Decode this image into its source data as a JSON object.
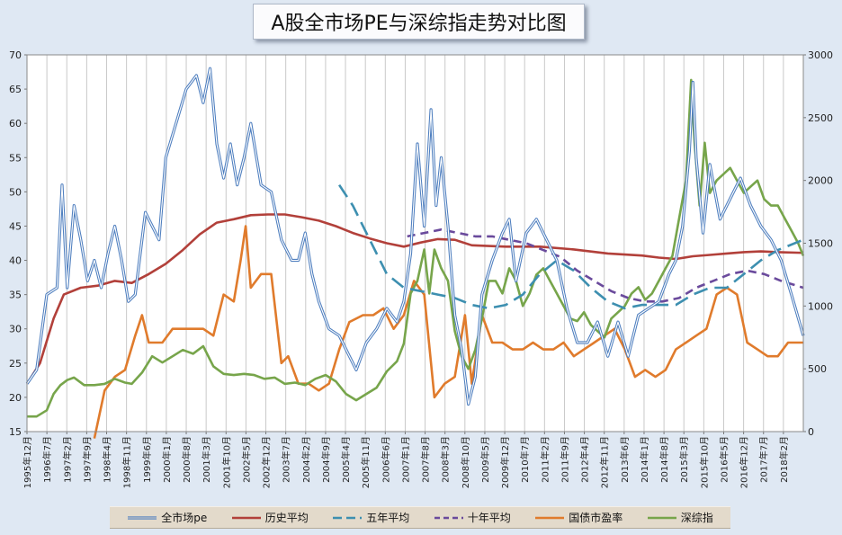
{
  "title": "A股全市场PE与深综指走势对比图",
  "chart_data": {
    "type": "line",
    "title": "A股全市场PE与深综指走势对比图",
    "y_left": {
      "min": 15,
      "max": 70,
      "step": 5,
      "ticks": [
        "15",
        "20",
        "25",
        "30",
        "35",
        "40",
        "45",
        "50",
        "55",
        "60",
        "65",
        "70"
      ]
    },
    "y_right": {
      "min": 0,
      "max": 3000,
      "step": 500,
      "ticks": [
        "0",
        "500",
        "1000",
        "1500",
        "2000",
        "2500",
        "3000"
      ]
    },
    "x_start": 1995.917,
    "x_end": 2018.75,
    "x_ticks": [
      "1995年12月",
      "1996年7月",
      "1997年2月",
      "1997年9月",
      "1998年4月",
      "1998年11月",
      "1999年6月",
      "2000年1月",
      "2000年8月",
      "2001年3月",
      "2001年10月",
      "2002年5月",
      "2002年12月",
      "2003年7月",
      "2004年2月",
      "2004年9月",
      "2005年4月",
      "2005年11月",
      "2006年6月",
      "2007年1月",
      "2007年8月",
      "2008年3月",
      "2008年10月",
      "2009年5月",
      "2009年12月",
      "2010年7月",
      "2011年2月",
      "2011年9月",
      "2012年4月",
      "2012年11月",
      "2013年6月",
      "2014年1月",
      "2014年8月",
      "2015年3月",
      "2015年10月",
      "2016年5月",
      "2016年12月",
      "2017年7月",
      "2018年2月"
    ],
    "series": [
      {
        "name": "全市场pe",
        "axis": "left",
        "color": "#4f7fbf",
        "style": "double",
        "x": [
          1995.92,
          1996.2,
          1996.5,
          1996.8,
          1996.95,
          1997.1,
          1997.3,
          1997.5,
          1997.7,
          1997.9,
          1998.1,
          1998.3,
          1998.5,
          1998.7,
          1998.9,
          1999.1,
          1999.4,
          1999.6,
          1999.8,
          2000.0,
          2000.3,
          2000.6,
          2000.9,
          2001.1,
          2001.3,
          2001.5,
          2001.7,
          2001.9,
          2002.1,
          2002.3,
          2002.5,
          2002.8,
          2003.1,
          2003.4,
          2003.7,
          2003.9,
          2004.1,
          2004.3,
          2004.5,
          2004.8,
          2005.1,
          2005.4,
          2005.6,
          2005.9,
          2006.2,
          2006.5,
          2006.8,
          2007.0,
          2007.2,
          2007.4,
          2007.6,
          2007.8,
          2007.95,
          2008.1,
          2008.3,
          2008.5,
          2008.7,
          2008.9,
          2009.1,
          2009.3,
          2009.6,
          2009.9,
          2010.1,
          2010.3,
          2010.6,
          2010.9,
          2011.2,
          2011.5,
          2011.8,
          2012.1,
          2012.4,
          2012.7,
          2013.0,
          2013.3,
          2013.6,
          2013.9,
          2014.2,
          2014.5,
          2014.8,
          2015.0,
          2015.2,
          2015.4,
          2015.5,
          2015.6,
          2015.8,
          2016.0,
          2016.3,
          2016.6,
          2016.9,
          2017.2,
          2017.5,
          2017.8,
          2018.1,
          2018.4,
          2018.75
        ],
        "y": [
          22,
          24,
          35,
          36,
          51,
          36,
          48,
          43,
          37,
          40,
          36,
          41,
          45,
          40,
          34,
          35,
          47,
          45,
          43,
          55,
          60,
          65,
          67,
          63,
          68,
          57,
          52,
          57,
          51,
          55,
          60,
          51,
          50,
          43,
          40,
          40,
          44,
          38,
          34,
          30,
          29,
          26,
          24,
          28,
          30,
          33,
          31,
          34,
          41,
          57,
          45,
          62,
          48,
          55,
          45,
          32,
          27,
          19,
          23,
          35,
          40,
          44,
          46,
          37,
          44,
          46,
          43,
          40,
          33,
          28,
          28,
          31,
          26,
          31,
          26,
          32,
          33,
          34,
          38,
          40,
          45,
          56,
          66,
          55,
          44,
          54,
          46,
          49,
          52,
          48,
          45,
          43,
          40,
          35,
          29
        ]
      },
      {
        "name": "历史平均",
        "axis": "left",
        "color": "#b2403a",
        "style": "solid",
        "x": [
          1995.92,
          1996.3,
          1996.7,
          1997.0,
          1997.5,
          1998.0,
          1998.5,
          1999.0,
          1999.5,
          2000.0,
          2000.5,
          2001.0,
          2001.5,
          2002.0,
          2002.5,
          2003.0,
          2003.5,
          2004.0,
          2004.5,
          2005.0,
          2005.5,
          2006.0,
          2006.5,
          2007.0,
          2007.5,
          2008.0,
          2008.5,
          2009.0,
          2010.0,
          2011.0,
          2012.0,
          2013.0,
          2014.0,
          2014.5,
          2015.0,
          2015.5,
          2016.0,
          2016.5,
          2017.0,
          2017.5,
          2018.0,
          2018.75
        ],
        "y": [
          22,
          25,
          31.5,
          35,
          36,
          36.3,
          37,
          36.7,
          38,
          39.5,
          41.5,
          43.8,
          45.5,
          46,
          46.6,
          46.7,
          46.7,
          46.3,
          45.8,
          45,
          44,
          43.2,
          42.5,
          42,
          42.6,
          43.1,
          43,
          42.2,
          42,
          42,
          41.6,
          41,
          40.7,
          40.4,
          40.2,
          40.6,
          40.8,
          41,
          41.2,
          41.3,
          41.2,
          41.1
        ]
      },
      {
        "name": "五年平均",
        "axis": "left",
        "color": "#3d8fb0",
        "style": "longdash",
        "x": [
          2005.1,
          2005.5,
          2006.0,
          2006.5,
          2007.0,
          2007.5,
          2008.0,
          2008.5,
          2009.0,
          2009.5,
          2010.0,
          2010.5,
          2011.0,
          2011.5,
          2012.0,
          2012.5,
          2013.0,
          2013.5,
          2014.0,
          2014.5,
          2015.0,
          2015.5,
          2016.0,
          2016.5,
          2017.0,
          2017.5,
          2018.0,
          2018.75
        ],
        "y": [
          51,
          48,
          43,
          38,
          36,
          35.5,
          35,
          34.5,
          33.5,
          33,
          33.5,
          35,
          38,
          40,
          38.5,
          36,
          34,
          33,
          33.5,
          33.5,
          33.5,
          35,
          36,
          36,
          38,
          40,
          41.5,
          43
        ]
      },
      {
        "name": "十年平均",
        "axis": "left",
        "color": "#6a4a9c",
        "style": "dash",
        "x": [
          2007.1,
          2007.6,
          2008.1,
          2008.6,
          2009.1,
          2009.6,
          2010.1,
          2010.6,
          2011.1,
          2011.6,
          2012.1,
          2012.6,
          2013.1,
          2013.6,
          2014.1,
          2014.6,
          2015.1,
          2015.6,
          2016.1,
          2016.6,
          2017.1,
          2017.6,
          2018.1,
          2018.75
        ],
        "y": [
          43.5,
          44,
          44.5,
          44,
          43.5,
          43.5,
          43,
          42.5,
          41.5,
          40.5,
          38.5,
          37,
          35.5,
          34.5,
          34,
          34,
          34.5,
          36,
          37,
          38,
          38.5,
          38,
          37,
          36
        ]
      },
      {
        "name": "国债市盈率",
        "axis": "left",
        "color": "#e07b2c",
        "style": "solid",
        "x": [
          1997.9,
          1998.2,
          1998.5,
          1998.8,
          1999.1,
          1999.3,
          1999.5,
          1999.7,
          1999.9,
          2000.2,
          2000.5,
          2000.8,
          2001.1,
          2001.4,
          2001.7,
          2002.0,
          2002.2,
          2002.35,
          2002.5,
          2002.8,
          2003.1,
          2003.4,
          2003.6,
          2003.9,
          2004.2,
          2004.5,
          2004.8,
          2005.1,
          2005.4,
          2005.8,
          2006.1,
          2006.4,
          2006.7,
          2007.0,
          2007.3,
          2007.6,
          2007.9,
          2008.2,
          2008.5,
          2008.8,
          2009.0,
          2009.3,
          2009.6,
          2009.9,
          2010.2,
          2010.5,
          2010.8,
          2011.1,
          2011.4,
          2011.7,
          2012.0,
          2012.3,
          2012.6,
          2012.9,
          2013.2,
          2013.5,
          2013.8,
          2014.1,
          2014.4,
          2014.7,
          2015.0,
          2015.3,
          2015.6,
          2015.9,
          2016.2,
          2016.5,
          2016.8,
          2017.1,
          2017.4,
          2017.7,
          2018.0,
          2018.3,
          2018.75
        ],
        "y": [
          14,
          21,
          23,
          24,
          29,
          32,
          28,
          28,
          28,
          30,
          30,
          30,
          30,
          29,
          35,
          34,
          40,
          45,
          36,
          38,
          38,
          25,
          26,
          22,
          22,
          21,
          22,
          27,
          31,
          32,
          32,
          33,
          30,
          32,
          37,
          35,
          20,
          22,
          23,
          32,
          22,
          32,
          28,
          28,
          27,
          27,
          28,
          27,
          27,
          28,
          26,
          27,
          28,
          29,
          30,
          27,
          23,
          24,
          23,
          24,
          27,
          28,
          29,
          30,
          35,
          36,
          35,
          28,
          27,
          26,
          26,
          28,
          28
        ]
      },
      {
        "name": "深综指",
        "axis": "right",
        "color": "#77a54b",
        "style": "solid",
        "x": [
          1995.92,
          1996.2,
          1996.5,
          1996.7,
          1996.9,
          1997.1,
          1997.3,
          1997.6,
          1997.9,
          1998.2,
          1998.5,
          1998.8,
          1999.0,
          1999.3,
          1999.6,
          1999.9,
          2000.2,
          2000.5,
          2000.8,
          2001.1,
          2001.4,
          2001.7,
          2002.0,
          2002.3,
          2002.6,
          2002.9,
          2003.2,
          2003.5,
          2003.8,
          2004.1,
          2004.4,
          2004.7,
          2005.0,
          2005.3,
          2005.6,
          2005.9,
          2006.2,
          2006.5,
          2006.8,
          2007.0,
          2007.2,
          2007.4,
          2007.6,
          2007.75,
          2007.9,
          2008.1,
          2008.3,
          2008.5,
          2008.7,
          2008.9,
          2009.1,
          2009.3,
          2009.5,
          2009.7,
          2009.9,
          2010.1,
          2010.3,
          2010.5,
          2010.7,
          2010.9,
          2011.1,
          2011.3,
          2011.5,
          2011.7,
          2011.9,
          2012.1,
          2012.3,
          2012.5,
          2012.7,
          2012.9,
          2013.1,
          2013.3,
          2013.5,
          2013.7,
          2013.9,
          2014.1,
          2014.3,
          2014.5,
          2014.7,
          2014.9,
          2015.1,
          2015.3,
          2015.45,
          2015.55,
          2015.7,
          2015.85,
          2016.0,
          2016.2,
          2016.4,
          2016.6,
          2016.8,
          2017.0,
          2017.2,
          2017.4,
          2017.6,
          2017.8,
          2018.0,
          2018.2,
          2018.4,
          2018.6,
          2018.75
        ],
        "y": [
          120,
          120,
          170,
          300,
          370,
          410,
          430,
          370,
          370,
          380,
          420,
          390,
          380,
          470,
          600,
          550,
          600,
          650,
          620,
          680,
          520,
          460,
          450,
          460,
          450,
          420,
          430,
          380,
          390,
          370,
          420,
          450,
          400,
          300,
          250,
          300,
          350,
          480,
          560,
          700,
          1100,
          1200,
          1450,
          1100,
          1450,
          1300,
          1200,
          800,
          600,
          500,
          650,
          900,
          1200,
          1200,
          1100,
          1300,
          1200,
          1000,
          1100,
          1250,
          1300,
          1200,
          1100,
          1000,
          900,
          880,
          950,
          850,
          800,
          750,
          900,
          950,
          1000,
          1100,
          1150,
          1050,
          1100,
          1200,
          1300,
          1400,
          1700,
          2000,
          2800,
          2300,
          1800,
          2300,
          1900,
          2000,
          2050,
          2100,
          2000,
          1900,
          1950,
          2000,
          1850,
          1800,
          1800,
          1700,
          1600,
          1500,
          1400
        ]
      }
    ],
    "grid": "vertical",
    "legend": "bottom"
  }
}
